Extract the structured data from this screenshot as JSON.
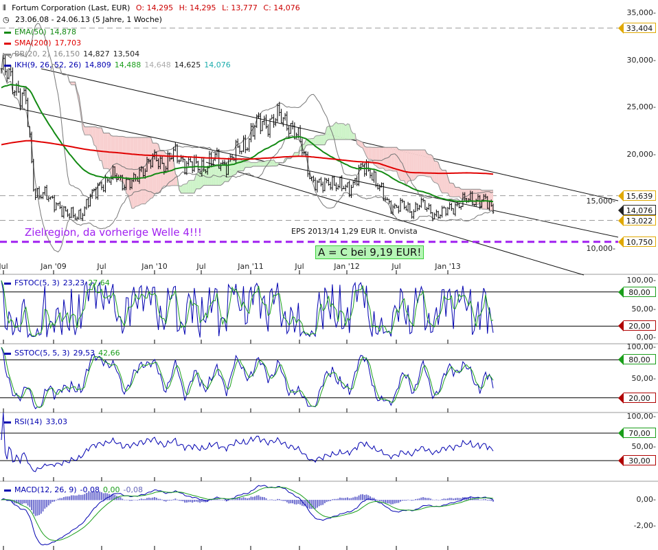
{
  "header": {
    "title": "Fortum Corporation (Last, EUR)",
    "ohlc": {
      "o": "O: 14,295",
      "h": "H: 14,295",
      "l": "L: 13,777",
      "c": "C: 14,076"
    },
    "range": "23.06.08 - 24.06.13 (5 Jahre, 1 Woche)"
  },
  "legend": {
    "ema": {
      "label": "EMA(50)",
      "v1": "14,878",
      "color": "#138a13"
    },
    "sma": {
      "label": "SMA(200)",
      "v1": "17,703",
      "color": "#e00000"
    },
    "bb": {
      "label": "BB(20, 2)",
      "v1": "16,150",
      "v2": "14,827",
      "v3": "13,504",
      "color": "#888888"
    },
    "ikh": {
      "label": "IKH(9, 26, 52, 26)",
      "v1": "14,809",
      "v2": "14,488",
      "v3": "14,648",
      "v4": "14,625",
      "v5": "14,076",
      "color": "#0000b0"
    }
  },
  "annotations": {
    "target": "Zielregion, da vorherige Welle 4!!!",
    "eps": "EPS 2013/14 1,29 EUR lt. Onvista",
    "abc": "A = C bei 9,19 EUR!"
  },
  "price_axis": [
    "35,000",
    "30,000",
    "25,000",
    "20,000",
    "15,000",
    "10,000"
  ],
  "price_tags": [
    {
      "label": "33,404",
      "value": 33.404,
      "color": "#e0a800"
    },
    {
      "label": "15,639",
      "value": 15.639,
      "color": "#e0a800"
    },
    {
      "label": "14,076",
      "value": 14.076,
      "color": "#222222"
    },
    {
      "label": "13,022",
      "value": 13.022,
      "color": "#e0a800"
    },
    {
      "label": "10,750",
      "value": 10.75,
      "color": "#e0a800"
    }
  ],
  "x_ticks": [
    "Jul",
    "Jan '09",
    "Jul",
    "Jan '10",
    "Jul",
    "Jan '11",
    "Jul",
    "Jan '12",
    "Jul",
    "Jan '13"
  ],
  "fstoc": {
    "label": "FSTOC(5, 3)",
    "v1": "23,23",
    "v2": "27,64",
    "axis": [
      "100,00",
      "50,00",
      "0,00"
    ],
    "tags": [
      "80,00",
      "20,00"
    ]
  },
  "sstoc": {
    "label": "SSTOC(5, 5, 3)",
    "v1": "29,53",
    "v2": "42,66",
    "axis": [
      "100,00",
      "50,00"
    ],
    "tags": [
      "80,00",
      "20,00"
    ]
  },
  "rsi": {
    "label": "RSI(14)",
    "v1": "33,03",
    "axis": [
      "100,00",
      "50,00"
    ],
    "tags": [
      "70,00",
      "30,00"
    ]
  },
  "macd": {
    "label": "MACD(12, 26, 9)",
    "v1": "-0,08",
    "v2": "0,00",
    "v3": "-0,08",
    "axis": [
      "0,00",
      "-2,00"
    ]
  },
  "chart_data": {
    "type": "candlestick",
    "title": "Fortum Corporation (Last, EUR)",
    "frequency": "weekly (monthly approximate closes listed)",
    "x_start": "2008-06",
    "x_end": "2013-06",
    "monthly_close": [
      29.1,
      28,
      27,
      25.5,
      16,
      16,
      15,
      14.8,
      13.5,
      13.5,
      14,
      15.5,
      17,
      17,
      18,
      17,
      16.8,
      18.5,
      19,
      19.5,
      19,
      20,
      19.5,
      19,
      18.5,
      19,
      19.5,
      19,
      19.5,
      20.5,
      21.5,
      23,
      23.5,
      23.5,
      24,
      23.5,
      22,
      20,
      17,
      16.5,
      17.5,
      16.5,
      16.5,
      17,
      18.5,
      18.5,
      16.5,
      15,
      14.5,
      14.5,
      14,
      14.8,
      14.2,
      13.7,
      13.8,
      14.5,
      14.8,
      15.2,
      15.3,
      15,
      14.1
    ],
    "ylim": [
      9,
      36
    ],
    "horizontal_levels": [
      33.404,
      15.639,
      13.022,
      10.75
    ],
    "grid": false,
    "indicators": [
      "EMA(50)",
      "SMA(200)",
      "BB(20, 2)",
      "IKH(9, 26, 52, 26)",
      "FSTOC(5, 3)",
      "SSTOC(5, 5, 3)",
      "RSI(14)",
      "MACD(12, 26, 9)"
    ]
  }
}
